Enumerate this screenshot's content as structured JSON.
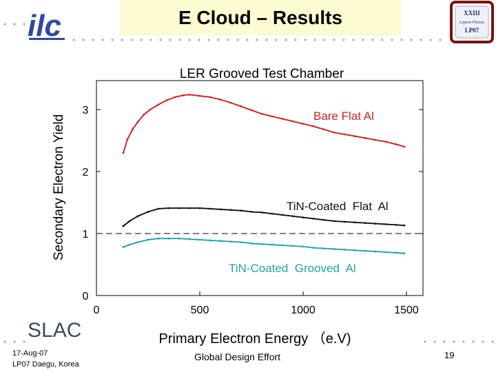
{
  "header": {
    "title": "E Cloud – Results",
    "logo_text": "ilc",
    "seal_text": [
      "XXIII",
      "Lepton-Photon",
      "LP07"
    ]
  },
  "chart_data": {
    "type": "line",
    "title": "LER Grooved Test Chamber",
    "xlabel": "Primary Electron Energy （e.V)",
    "ylabel": "Secondary Electron Yield",
    "xlim": [
      0,
      1500
    ],
    "ylim": [
      0,
      3.4
    ],
    "xticks": [
      "0",
      "500",
      "1000",
      "1500"
    ],
    "yticks": [
      "0",
      "1",
      "2",
      "3"
    ],
    "reference_line": 1,
    "grid": false,
    "series": [
      {
        "name": "Bare Flat Al",
        "color": "#cc2222",
        "x": [
          130,
          150,
          175,
          200,
          230,
          260,
          300,
          340,
          380,
          420,
          450,
          500,
          550,
          600,
          650,
          700,
          750,
          800,
          850,
          900,
          950,
          1000,
          1050,
          1100,
          1150,
          1200,
          1250,
          1300,
          1350,
          1400,
          1450,
          1490
        ],
        "y": [
          2.3,
          2.52,
          2.68,
          2.8,
          2.92,
          3.0,
          3.08,
          3.15,
          3.2,
          3.23,
          3.24,
          3.22,
          3.2,
          3.16,
          3.11,
          3.05,
          2.99,
          2.93,
          2.89,
          2.85,
          2.81,
          2.77,
          2.73,
          2.68,
          2.63,
          2.6,
          2.57,
          2.54,
          2.51,
          2.48,
          2.44,
          2.4
        ]
      },
      {
        "name": "TiN-Coated  Flat  Al",
        "color": "#111111",
        "x": [
          130,
          160,
          200,
          250,
          300,
          350,
          400,
          450,
          500,
          550,
          600,
          650,
          700,
          750,
          800,
          850,
          900,
          950,
          1000,
          1050,
          1100,
          1150,
          1200,
          1250,
          1300,
          1350,
          1400,
          1450,
          1490
        ],
        "y": [
          1.12,
          1.2,
          1.28,
          1.35,
          1.4,
          1.41,
          1.41,
          1.41,
          1.41,
          1.4,
          1.39,
          1.38,
          1.37,
          1.35,
          1.34,
          1.32,
          1.3,
          1.28,
          1.26,
          1.24,
          1.22,
          1.2,
          1.19,
          1.18,
          1.17,
          1.16,
          1.15,
          1.14,
          1.13
        ]
      },
      {
        "name": "TiN-Coated  Grooved  Al",
        "color": "#22a3a3",
        "x": [
          130,
          160,
          200,
          250,
          300,
          350,
          400,
          450,
          500,
          550,
          600,
          650,
          700,
          750,
          800,
          850,
          900,
          950,
          1000,
          1050,
          1100,
          1150,
          1200,
          1250,
          1300,
          1350,
          1400,
          1450,
          1490
        ],
        "y": [
          0.78,
          0.82,
          0.86,
          0.9,
          0.92,
          0.92,
          0.92,
          0.91,
          0.9,
          0.89,
          0.88,
          0.87,
          0.86,
          0.84,
          0.83,
          0.82,
          0.81,
          0.8,
          0.79,
          0.77,
          0.76,
          0.75,
          0.74,
          0.73,
          0.72,
          0.71,
          0.7,
          0.69,
          0.68
        ]
      }
    ]
  },
  "footer": {
    "org": "SLAC",
    "date": "17-Aug-07",
    "venue": "LP07 Daegu, Korea",
    "center": "Global Design Effort",
    "page": "19"
  }
}
